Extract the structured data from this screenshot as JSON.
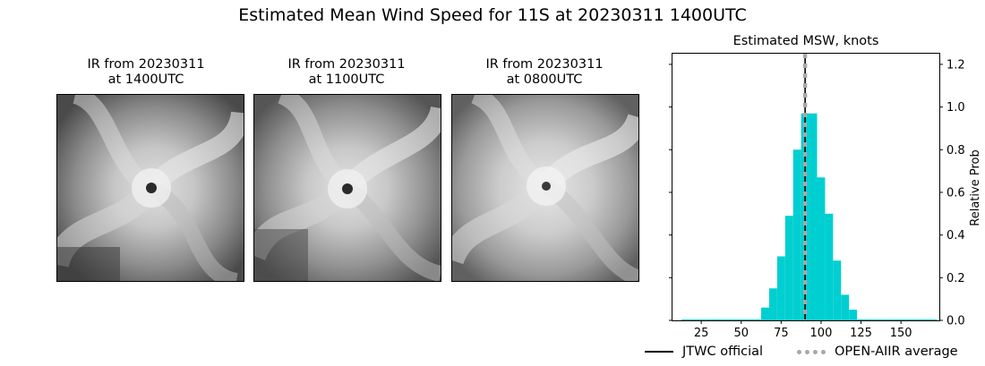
{
  "suptitle": "Estimated Mean Wind Speed for 11S at 20230311 1400UTC",
  "ir_panels": [
    {
      "title_line1": "IR from 20230311",
      "title_line2": "at 1400UTC"
    },
    {
      "title_line1": "IR from 20230311",
      "title_line2": "at 1100UTC"
    },
    {
      "title_line1": "IR from 20230311",
      "title_line2": "at 0800UTC"
    }
  ],
  "legend": {
    "jtwc_label": "JTWC official",
    "openaiir_label": "OPEN-AIIR average"
  },
  "colors": {
    "bars": "#00cfd1",
    "jtwc_line": "#000000",
    "openaiir_line": "#a8a8a8"
  },
  "chart_data": {
    "type": "bar",
    "title": "Estimated MSW, knots",
    "xlabel": "",
    "ylabel": "Relative Prob",
    "xlim": [
      7,
      174
    ],
    "ylim": [
      0,
      1.25
    ],
    "x_ticks": [
      25,
      50,
      75,
      100,
      125,
      150
    ],
    "y_ticks": [
      0.0,
      0.2,
      0.4,
      0.6,
      0.8,
      1.0,
      1.2
    ],
    "y_tick_labels": [
      "0.0",
      "0.2",
      "0.4",
      "0.6",
      "0.8",
      "1.0",
      "1.2"
    ],
    "y_axis_side": "right",
    "bin_width": 5,
    "bin_centers": [
      15,
      20,
      25,
      30,
      35,
      40,
      45,
      50,
      55,
      60,
      65,
      70,
      75,
      80,
      85,
      90,
      95,
      100,
      105,
      110,
      115,
      120,
      125,
      130,
      135,
      140,
      145,
      150,
      155,
      160,
      165,
      170
    ],
    "values": [
      0.005,
      0.005,
      0.005,
      0.005,
      0.005,
      0.005,
      0.005,
      0.005,
      0.005,
      0.005,
      0.06,
      0.15,
      0.3,
      0.49,
      0.8,
      0.97,
      0.97,
      0.67,
      0.5,
      0.28,
      0.12,
      0.05,
      0.005,
      0.005,
      0.005,
      0.005,
      0.005,
      0.005,
      0.005,
      0.005,
      0.005,
      0.005
    ],
    "jtwc_official": 90,
    "openaiir_average": 90,
    "grid": false,
    "legend_position": "bottom"
  }
}
